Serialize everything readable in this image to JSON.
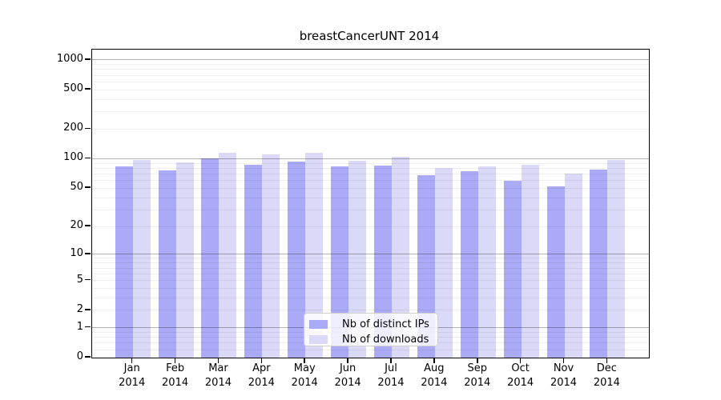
{
  "title": "breastCancerUNT 2014",
  "chart_data": {
    "type": "bar",
    "title": "breastCancerUNT 2014",
    "categories": [
      "Jan",
      "Feb",
      "Mar",
      "Apr",
      "May",
      "Jun",
      "Jul",
      "Aug",
      "Sep",
      "Oct",
      "Nov",
      "Dec"
    ],
    "year_label": "2014",
    "series": [
      {
        "name": "Nb of distinct IPs",
        "color": "#aaaaf7",
        "values": [
          83,
          76,
          101,
          86,
          94,
          83,
          85,
          68,
          75,
          60,
          52,
          78
        ]
      },
      {
        "name": "Nb of downloads",
        "color": "#dadaf8",
        "values": [
          98,
          92,
          116,
          110,
          115,
          96,
          105,
          80,
          83,
          87,
          70,
          97
        ]
      }
    ],
    "xlabel": "",
    "ylabel": "",
    "yscale": "log10(1+x)",
    "ylim": [
      0,
      1272
    ],
    "y_tick_values": [
      1000,
      500,
      200,
      100,
      50,
      20,
      10,
      5,
      2,
      1,
      0
    ],
    "y_tick_labels": [
      "1000",
      "500",
      "200",
      "100",
      "50",
      "20",
      "10",
      "5",
      "2",
      "1",
      "0"
    ],
    "grid": true,
    "grid_major_values": [
      1,
      10,
      100,
      1000
    ],
    "grid_minor_values": [
      0.2,
      0.4,
      0.6,
      0.8,
      2,
      3,
      4,
      5,
      6,
      7,
      8,
      9,
      20,
      30,
      40,
      50,
      60,
      70,
      80,
      90,
      200,
      300,
      400,
      500,
      600,
      700,
      800,
      900
    ],
    "legend_position": "inside-bottom-center"
  },
  "colors": {
    "background": "#ffffff",
    "axis": "#000000",
    "text": "#000000",
    "grid_major": "rgba(0,0,0,0.30)",
    "grid_minor": "rgba(0,0,0,0.065)",
    "legend_background": "rgba(255,255,255,0.8)",
    "legend_border": "#d0d0d0"
  }
}
